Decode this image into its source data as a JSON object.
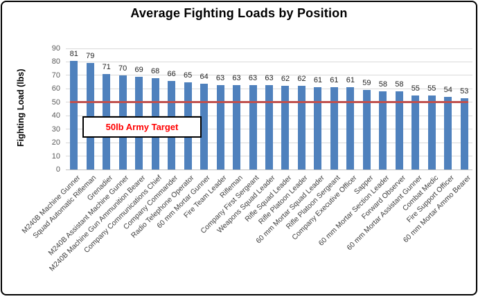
{
  "window": {
    "background": "#ffffff",
    "border_color": "#000000"
  },
  "chart_data": {
    "type": "bar",
    "title": "Average Fighting Loads by Position",
    "xlabel": "",
    "ylabel": "Fighting Load (lbs)",
    "ylim": [
      0,
      90
    ],
    "ytick_step": 10,
    "grid": true,
    "legend": "none",
    "bar_color": "#4F81BD",
    "axis_line_color": "#BFBFBF",
    "gridline_color": "#D9D9D9",
    "tick_label_color": "#595959",
    "category_label_color": "#3F3F3F",
    "value_label_color": "#1F1F1F",
    "categories": [
      "M240B Machine Gunner",
      "Squad Automatic Rifleman",
      "Grenadier",
      "M240B Assistant Machine Gunner",
      "M240B Machine Gun Ammunition Bearer",
      "Company Communications Chief",
      "Company Commander",
      "Radio Telephone Operator",
      "60 mm Mortar Gunner",
      "Fire Team Leader",
      "Rifleman",
      "Company First Sergeant",
      "Weapons Squad Leader",
      "Rifle Squad Leader",
      "Rifle Platoon Leader",
      "60 mm Mortar Squad Leader",
      "Rifle Platoon Sergeant",
      "Company Executive Officer",
      "Sapper",
      "60 mm Mortar Section Leader",
      "Forward Observer",
      "60 mm Mortar Assistant Gunner",
      "Combat Medic",
      "Fire Support Officer",
      "60 mm Mortar Ammo Bearer"
    ],
    "values": [
      81,
      79,
      71,
      70,
      69,
      68,
      66,
      65,
      64,
      63,
      63,
      63,
      63,
      62,
      62,
      61,
      61,
      61,
      59,
      58,
      58,
      55,
      55,
      54,
      53
    ],
    "target_line": {
      "value": 50,
      "label": "50lb Army Target",
      "line_color": "#C0504D",
      "label_color": "#FF0000"
    }
  }
}
